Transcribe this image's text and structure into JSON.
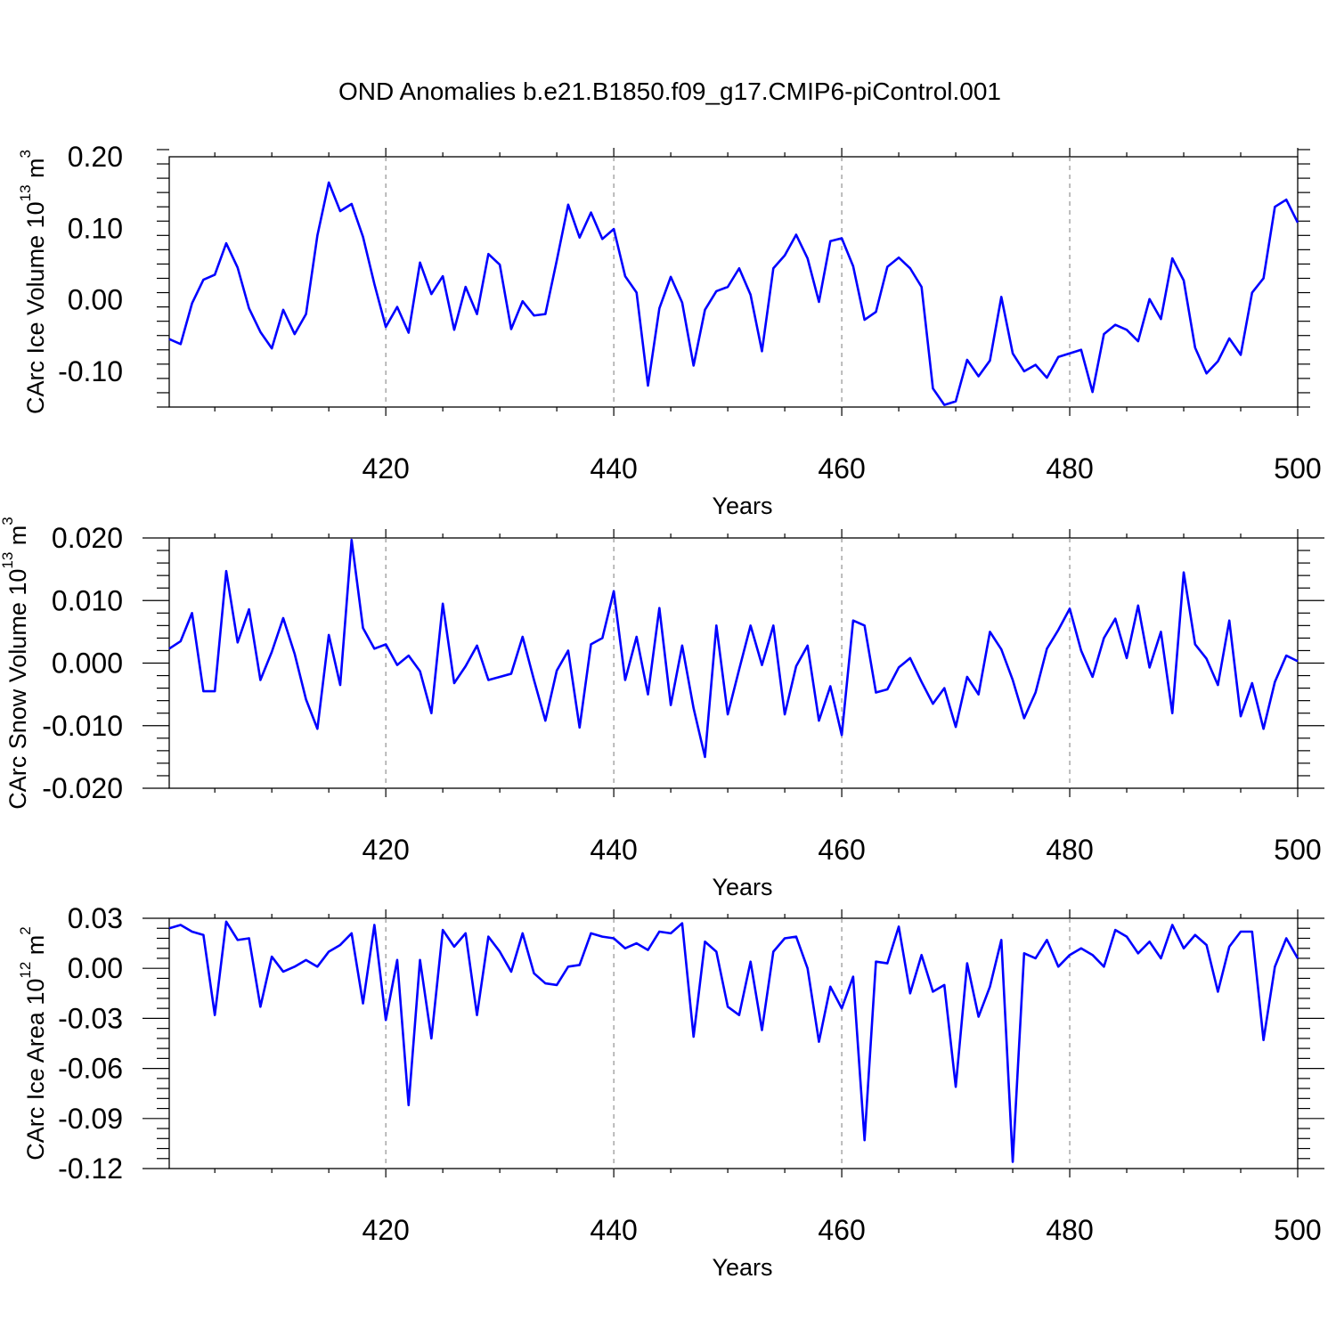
{
  "title": "OND Anomalies b.e21.B1850.f09_g17.CMIP6-piControl.001",
  "colors": {
    "series": "#0000ff",
    "axis": "#000000",
    "grid": "#888888"
  },
  "chart_data": [
    {
      "type": "line",
      "name": "ice-volume",
      "xlabel": "Years",
      "ylabel": "CArc Ice Volume 10",
      "ylabel_exp": "13",
      "ylabel_unit": " m",
      "ylabel_unit_exp": "3",
      "xlim": [
        401,
        500
      ],
      "ylim": [
        -0.15,
        0.2
      ],
      "xticks": [
        420,
        440,
        460,
        480,
        500
      ],
      "xtick_labels": [
        "420",
        "440",
        "460",
        "480",
        "500"
      ],
      "yticks": [
        0.2,
        0.1,
        0.0,
        -0.1
      ],
      "ytick_labels": [
        "0.20",
        "0.10",
        "0.00",
        "-0.10"
      ],
      "grid_x": [
        420,
        440,
        460,
        480
      ],
      "x_start": 401,
      "values": [
        -0.055,
        -0.062,
        -0.005,
        0.028,
        0.035,
        0.079,
        0.045,
        -0.012,
        -0.045,
        -0.068,
        -0.014,
        -0.048,
        -0.02,
        0.09,
        0.164,
        0.124,
        0.134,
        0.088,
        0.022,
        -0.038,
        -0.01,
        -0.046,
        0.052,
        0.008,
        0.033,
        -0.042,
        0.018,
        -0.02,
        0.064,
        0.049,
        -0.041,
        -0.002,
        -0.022,
        -0.02,
        0.055,
        0.133,
        0.087,
        0.122,
        0.085,
        0.099,
        0.033,
        0.01,
        -0.12,
        -0.012,
        0.032,
        -0.004,
        -0.092,
        -0.014,
        0.012,
        0.018,
        0.044,
        0.007,
        -0.072,
        0.044,
        0.062,
        0.091,
        0.058,
        -0.003,
        0.082,
        0.086,
        0.047,
        -0.028,
        -0.017,
        0.046,
        0.059,
        0.044,
        0.018,
        -0.124,
        -0.147,
        -0.142,
        -0.084,
        -0.107,
        -0.085,
        0.004,
        -0.075,
        -0.1,
        -0.091,
        -0.109,
        -0.08,
        -0.075,
        -0.07,
        -0.129,
        -0.048,
        -0.035,
        -0.042,
        -0.058,
        0.001,
        -0.027,
        0.058,
        0.027,
        -0.067,
        -0.103,
        -0.086,
        -0.054,
        -0.077,
        0.01,
        0.03,
        0.13,
        0.14,
        0.108
      ]
    },
    {
      "type": "line",
      "name": "snow-volume",
      "xlabel": "Years",
      "ylabel": "CArc Snow Volume 10",
      "ylabel_exp": "13",
      "ylabel_unit": " m",
      "ylabel_unit_exp": "3",
      "xlim": [
        401,
        500
      ],
      "ylim": [
        -0.02,
        0.02
      ],
      "xticks": [
        420,
        440,
        460,
        480,
        500
      ],
      "xtick_labels": [
        "420",
        "440",
        "460",
        "480",
        "500"
      ],
      "yticks": [
        0.02,
        0.01,
        0.0,
        -0.01,
        -0.02
      ],
      "ytick_labels": [
        "0.020",
        "0.010",
        "0.000",
        "-0.010",
        "-0.020"
      ],
      "grid_x": [
        420,
        440,
        460,
        480
      ],
      "x_start": 401,
      "values": [
        0.0023,
        0.0035,
        0.008,
        -0.0045,
        -0.0045,
        0.0147,
        0.0033,
        0.0086,
        -0.0027,
        0.0018,
        0.0072,
        0.0015,
        -0.0058,
        -0.0105,
        0.0045,
        -0.0035,
        0.0197,
        0.0056,
        0.0023,
        0.003,
        -0.0003,
        0.0012,
        -0.0013,
        -0.008,
        0.0095,
        -0.0032,
        -0.0005,
        0.0028,
        -0.0027,
        -0.0022,
        -0.0017,
        0.0042,
        -0.0027,
        -0.0092,
        -0.0012,
        0.002,
        -0.0103,
        0.003,
        0.004,
        0.0115,
        -0.0027,
        0.0042,
        -0.005,
        0.0088,
        -0.0067,
        0.0028,
        -0.0072,
        -0.015,
        0.006,
        -0.0082,
        -0.001,
        0.006,
        -0.0003,
        0.006,
        -0.0082,
        -0.0005,
        0.0028,
        -0.0092,
        -0.0037,
        -0.0115,
        0.0068,
        0.006,
        -0.0047,
        -0.0042,
        -0.0007,
        0.0008,
        -0.003,
        -0.0065,
        -0.004,
        -0.0102,
        -0.0022,
        -0.005,
        0.005,
        0.0022,
        -0.0027,
        -0.0088,
        -0.0047,
        0.0023,
        0.0053,
        0.0087,
        0.002,
        -0.0022,
        0.004,
        0.0071,
        0.0008,
        0.0092,
        -0.0007,
        0.005,
        -0.008,
        0.0145,
        0.003,
        0.0007,
        -0.0035,
        0.0068,
        -0.0085,
        -0.0032,
        -0.0105,
        -0.003,
        0.0012,
        0.0003
      ]
    },
    {
      "type": "line",
      "name": "ice-area",
      "xlabel": "Years",
      "ylabel": "CArc Ice Area 10",
      "ylabel_exp": "12",
      "ylabel_unit": " m",
      "ylabel_unit_exp": "2",
      "xlim": [
        401,
        500
      ],
      "ylim": [
        -0.12,
        0.03
      ],
      "xticks": [
        420,
        440,
        460,
        480,
        500
      ],
      "xtick_labels": [
        "420",
        "440",
        "460",
        "480",
        "500"
      ],
      "yticks": [
        0.03,
        0.0,
        -0.03,
        -0.06,
        -0.09,
        -0.12
      ],
      "ytick_labels": [
        "0.03",
        "0.00",
        "-0.03",
        "-0.06",
        "-0.09",
        "-0.12"
      ],
      "grid_x": [
        420,
        440,
        460,
        480
      ],
      "x_start": 401,
      "values": [
        0.024,
        0.026,
        0.022,
        0.02,
        -0.028,
        0.028,
        0.017,
        0.018,
        -0.023,
        0.007,
        -0.002,
        0.001,
        0.005,
        0.001,
        0.01,
        0.014,
        0.021,
        -0.021,
        0.026,
        -0.031,
        0.005,
        -0.082,
        0.005,
        -0.042,
        0.023,
        0.013,
        0.021,
        -0.028,
        0.019,
        0.01,
        -0.002,
        0.021,
        -0.003,
        -0.009,
        -0.01,
        0.001,
        0.002,
        0.021,
        0.019,
        0.018,
        0.012,
        0.015,
        0.011,
        0.022,
        0.021,
        0.027,
        -0.041,
        0.016,
        0.01,
        -0.023,
        -0.028,
        0.004,
        -0.037,
        0.01,
        0.018,
        0.019,
        0.0,
        -0.044,
        -0.011,
        -0.024,
        -0.005,
        -0.103,
        0.004,
        0.003,
        0.025,
        -0.015,
        0.008,
        -0.014,
        -0.01,
        -0.071,
        0.003,
        -0.029,
        -0.011,
        0.017,
        -0.116,
        0.009,
        0.006,
        0.017,
        0.001,
        0.008,
        0.012,
        0.008,
        0.001,
        0.023,
        0.019,
        0.009,
        0.016,
        0.006,
        0.026,
        0.012,
        0.02,
        0.014,
        -0.014,
        0.013,
        0.022,
        0.022,
        -0.043,
        0.001,
        0.018,
        0.006
      ]
    }
  ]
}
